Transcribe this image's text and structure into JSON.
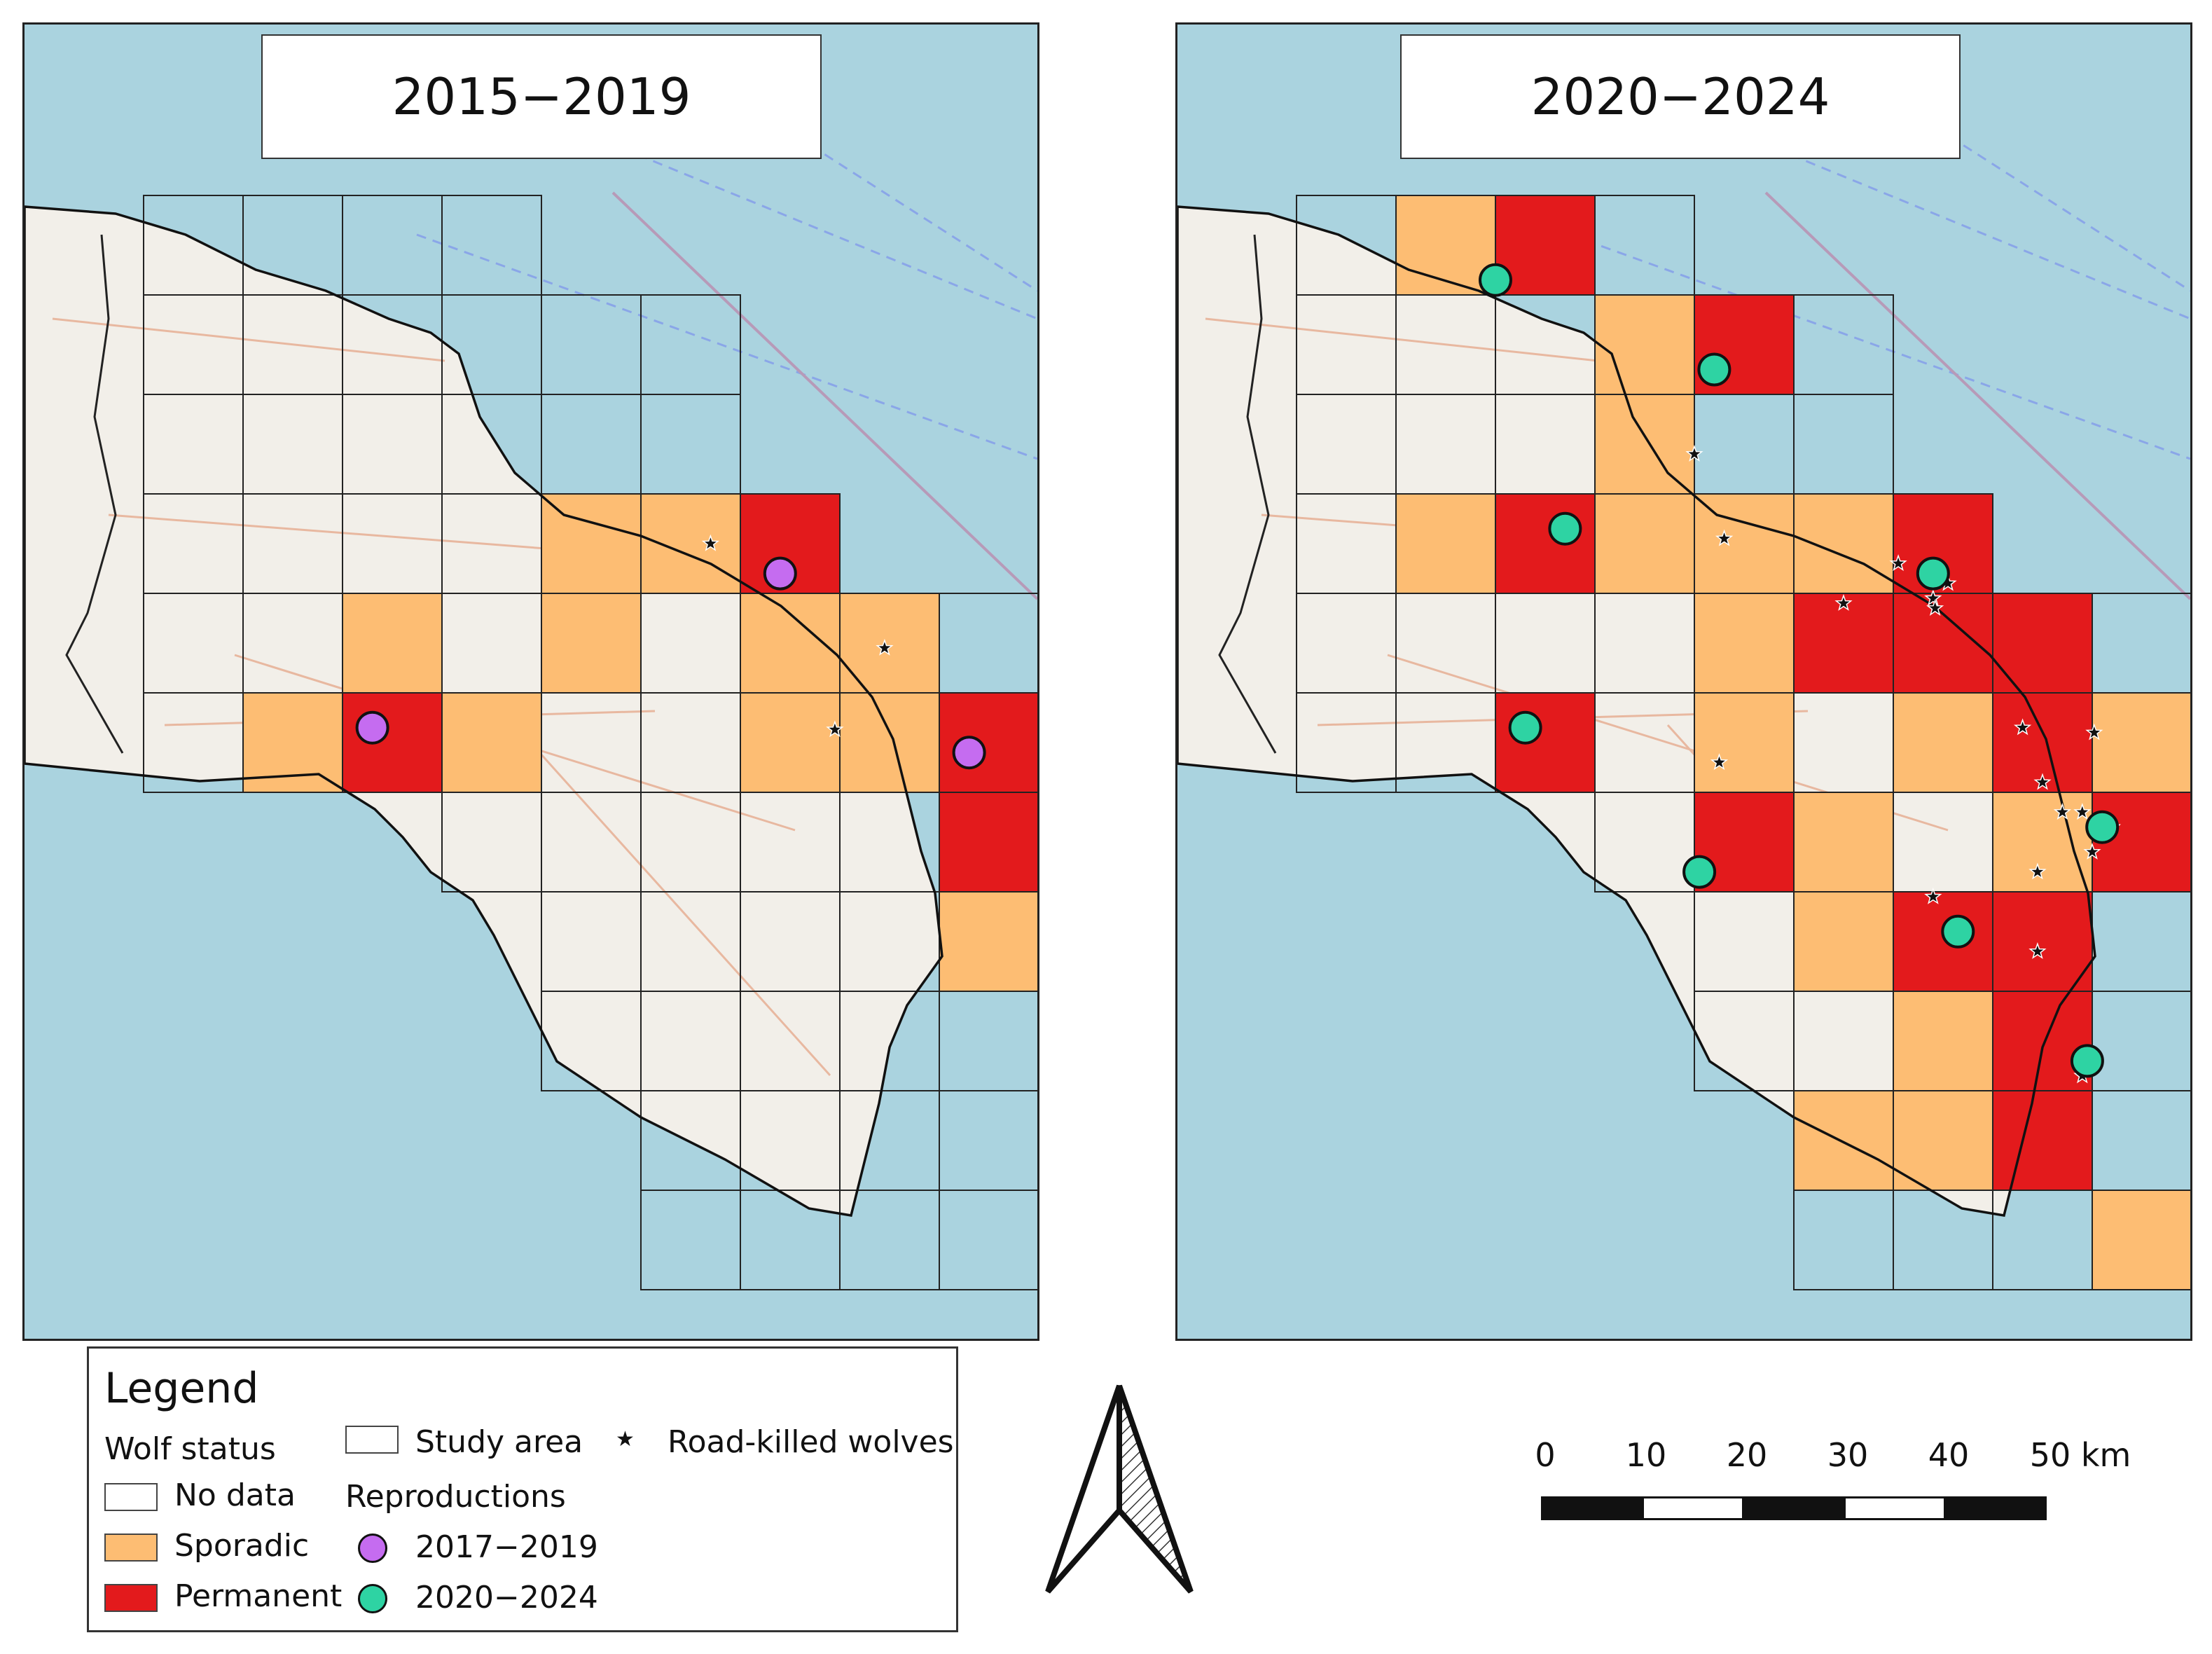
{
  "panels": [
    {
      "title": "2015−2019",
      "cells": [
        {
          "c": 4,
          "r": 3,
          "s": "S"
        },
        {
          "c": 5,
          "r": 3,
          "s": "S"
        },
        {
          "c": 6,
          "r": 3,
          "s": "P"
        },
        {
          "c": 2,
          "r": 4,
          "s": "S"
        },
        {
          "c": 4,
          "r": 4,
          "s": "S"
        },
        {
          "c": 6,
          "r": 4,
          "s": "S"
        },
        {
          "c": 7,
          "r": 4,
          "s": "S"
        },
        {
          "c": 1,
          "r": 5,
          "s": "S"
        },
        {
          "c": 2,
          "r": 5,
          "s": "P"
        },
        {
          "c": 3,
          "r": 5,
          "s": "S"
        },
        {
          "c": 6,
          "r": 5,
          "s": "S"
        },
        {
          "c": 7,
          "r": 5,
          "s": "S"
        },
        {
          "c": 8,
          "r": 5,
          "s": "P"
        },
        {
          "c": 8,
          "r": 6,
          "s": "P"
        },
        {
          "c": 8,
          "r": 7,
          "s": "S"
        }
      ],
      "reproductions": [
        {
          "col": 6.4,
          "row": 3.8,
          "period": "2017−2019"
        },
        {
          "col": 2.3,
          "row": 5.35,
          "period": "2017−2019"
        },
        {
          "col": 8.3,
          "row": 5.6,
          "period": "2017−2019"
        }
      ],
      "roadkills": [
        {
          "col": 5.7,
          "row": 3.5
        },
        {
          "col": 7.45,
          "row": 4.55
        },
        {
          "col": 6.95,
          "row": 5.37
        }
      ]
    },
    {
      "title": "2020−2024",
      "cells": [
        {
          "c": 1,
          "r": 0,
          "s": "S"
        },
        {
          "c": 2,
          "r": 0,
          "s": "P"
        },
        {
          "c": 3,
          "r": 1,
          "s": "S"
        },
        {
          "c": 4,
          "r": 1,
          "s": "P"
        },
        {
          "c": 3,
          "r": 2,
          "s": "S"
        },
        {
          "c": 1,
          "r": 3,
          "s": "S"
        },
        {
          "c": 2,
          "r": 3,
          "s": "P"
        },
        {
          "c": 3,
          "r": 3,
          "s": "S"
        },
        {
          "c": 4,
          "r": 3,
          "s": "S"
        },
        {
          "c": 5,
          "r": 3,
          "s": "S"
        },
        {
          "c": 6,
          "r": 3,
          "s": "P"
        },
        {
          "c": 4,
          "r": 4,
          "s": "S"
        },
        {
          "c": 5,
          "r": 4,
          "s": "P"
        },
        {
          "c": 6,
          "r": 4,
          "s": "P"
        },
        {
          "c": 7,
          "r": 4,
          "s": "P"
        },
        {
          "c": 2,
          "r": 5,
          "s": "P"
        },
        {
          "c": 4,
          "r": 5,
          "s": "S"
        },
        {
          "c": 6,
          "r": 5,
          "s": "S"
        },
        {
          "c": 7,
          "r": 5,
          "s": "P"
        },
        {
          "c": 8,
          "r": 5,
          "s": "S"
        },
        {
          "c": 4,
          "r": 6,
          "s": "P"
        },
        {
          "c": 5,
          "r": 6,
          "s": "S"
        },
        {
          "c": 7,
          "r": 6,
          "s": "S"
        },
        {
          "c": 8,
          "r": 6,
          "s": "P"
        },
        {
          "c": 5,
          "r": 7,
          "s": "S"
        },
        {
          "c": 6,
          "r": 7,
          "s": "P"
        },
        {
          "c": 7,
          "r": 7,
          "s": "P"
        },
        {
          "c": 6,
          "r": 8,
          "s": "S"
        },
        {
          "c": 7,
          "r": 8,
          "s": "P"
        },
        {
          "c": 5,
          "r": 9,
          "s": "S"
        },
        {
          "c": 6,
          "r": 9,
          "s": "S"
        },
        {
          "c": 7,
          "r": 9,
          "s": "P"
        },
        {
          "c": 8,
          "r": 10,
          "s": "S"
        }
      ],
      "reproductions": [
        {
          "col": 2.0,
          "row": 0.85,
          "period": "2020−2024"
        },
        {
          "col": 4.2,
          "row": 1.75,
          "period": "2020−2024"
        },
        {
          "col": 2.7,
          "row": 3.35,
          "period": "2020−2024"
        },
        {
          "col": 6.4,
          "row": 3.8,
          "period": "2020−2024"
        },
        {
          "col": 2.3,
          "row": 5.35,
          "period": "2020−2024"
        },
        {
          "col": 8.1,
          "row": 6.35,
          "period": "2020−2024"
        },
        {
          "col": 4.05,
          "row": 6.8,
          "period": "2020−2024"
        },
        {
          "col": 6.65,
          "row": 7.4,
          "period": "2020−2024"
        },
        {
          "col": 7.95,
          "row": 8.7,
          "period": "2020−2024"
        }
      ],
      "roadkills": [
        {
          "col": 4.0,
          "row": 2.6
        },
        {
          "col": 4.3,
          "row": 3.45
        },
        {
          "col": 6.05,
          "row": 3.7
        },
        {
          "col": 6.55,
          "row": 3.9
        },
        {
          "col": 6.4,
          "row": 4.05
        },
        {
          "col": 5.5,
          "row": 4.1
        },
        {
          "col": 6.42,
          "row": 4.15
        },
        {
          "col": 7.3,
          "row": 5.35
        },
        {
          "col": 8.02,
          "row": 5.4
        },
        {
          "col": 4.25,
          "row": 5.7
        },
        {
          "col": 7.5,
          "row": 5.9
        },
        {
          "col": 7.7,
          "row": 6.2
        },
        {
          "col": 7.9,
          "row": 6.2
        },
        {
          "col": 8.2,
          "row": 6.35
        },
        {
          "col": 8.0,
          "row": 6.6
        },
        {
          "col": 7.45,
          "row": 6.8
        },
        {
          "col": 6.4,
          "row": 7.05
        },
        {
          "col": 7.45,
          "row": 7.6
        },
        {
          "col": 7.9,
          "row": 8.85
        }
      ]
    }
  ],
  "status_colors": {
    "sporadic": "#fdbd73",
    "permanent": "#e31a1c",
    "reproduction_2017_2019": "#c56cf0",
    "reproduction_2020_2024": "#2ed3a3"
  },
  "legend": {
    "heading": "Legend",
    "wolf_status": "Wolf status",
    "no_data": "No data",
    "sporadic": "Sporadic",
    "permanent": "Permanent",
    "study_area": "Study area",
    "road_killed": "Road-killed wolves",
    "reproductions": "Reproductions",
    "period_1": "2017−2019",
    "period_2": "2020−2024"
  },
  "north_arrow": "north-arrow",
  "scale_bar": {
    "labels": [
      "0",
      "10",
      "20",
      "30",
      "40",
      "50 km"
    ]
  }
}
